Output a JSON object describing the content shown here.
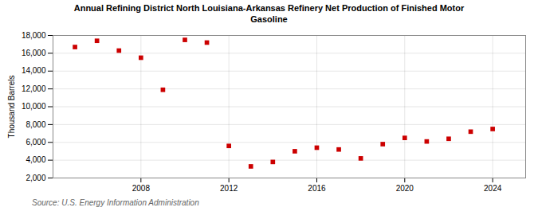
{
  "chart_data": {
    "type": "scatter",
    "title": "Annual Refining District North Louisiana-Arkansas Refinery Net Production of Finished Motor\nGasoline",
    "ylabel": "Thousand Barrels",
    "source": "Source: U.S. Energy Information Administration",
    "x": [
      2005,
      2006,
      2007,
      2008,
      2009,
      2010,
      2011,
      2012,
      2013,
      2014,
      2015,
      2016,
      2017,
      2018,
      2019,
      2020,
      2021,
      2022,
      2023,
      2024
    ],
    "values": [
      16700,
      17400,
      16300,
      15500,
      11900,
      17500,
      17200,
      5600,
      3300,
      3800,
      5000,
      5400,
      5200,
      4200,
      5800,
      6500,
      6100,
      6400,
      7200,
      7500
    ],
    "color": "#cc0000",
    "marker": "square",
    "xlim": [
      2004,
      2025.5
    ],
    "xticks": [
      2008,
      2012,
      2016,
      2020,
      2024
    ],
    "ylim": [
      2000,
      18000
    ],
    "yticks": [
      {
        "value": 2000,
        "label": "2,000"
      },
      {
        "value": 4000,
        "label": "4,000"
      },
      {
        "value": 6000,
        "label": "6,000"
      },
      {
        "value": 8000,
        "label": "8,000"
      },
      {
        "value": 10000,
        "label": "10,000"
      },
      {
        "value": 12000,
        "label": "12,000"
      },
      {
        "value": 14000,
        "label": "14,000"
      },
      {
        "value": 16000,
        "label": "16,000"
      },
      {
        "value": 18000,
        "label": "18,000"
      }
    ],
    "grid": true
  }
}
